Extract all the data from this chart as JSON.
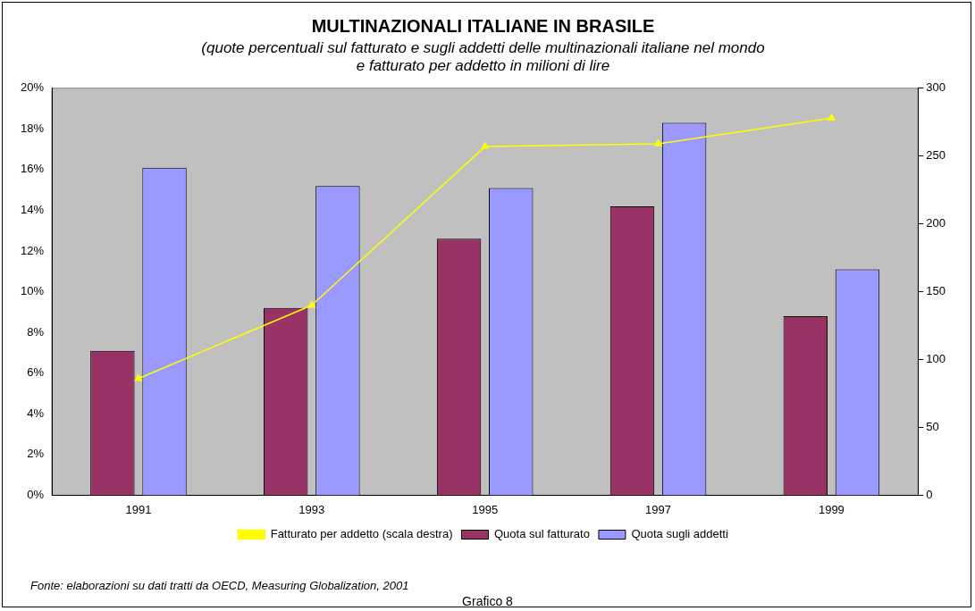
{
  "chart_data": {
    "type": "bar",
    "title": "MULTINAZIONALI ITALIANE IN BRASILE",
    "subtitle": "(quote percentuali sul fatturato e sugli addetti delle multinazionali italiane nel mondo\ne fatturato per addetto in milioni di lire",
    "categories": [
      "1991",
      "1993",
      "1995",
      "1997",
      "1999"
    ],
    "series": [
      {
        "name": "Quota sul fatturato",
        "color": "#993366",
        "values": [
          7.1,
          9.2,
          12.6,
          14.2,
          8.8
        ]
      },
      {
        "name": "Quota sugli addetti",
        "color": "#9999ff",
        "values": [
          16.1,
          15.2,
          15.1,
          18.3,
          11.1
        ]
      },
      {
        "name": "Fatturato per addetto (scala destra)",
        "type": "line",
        "axis": "y2",
        "color": "#ffff00",
        "marker": "triangle",
        "values": [
          86,
          140,
          257,
          259,
          278
        ]
      }
    ],
    "ylim": [
      0,
      20
    ],
    "yticks": [
      {
        "value": 0,
        "label": "0%"
      },
      {
        "value": 2,
        "label": "2%"
      },
      {
        "value": 4,
        "label": "4%"
      },
      {
        "value": 6,
        "label": "6%"
      },
      {
        "value": 8,
        "label": "8%"
      },
      {
        "value": 10,
        "label": "10%"
      },
      {
        "value": 12,
        "label": "12%"
      },
      {
        "value": 14,
        "label": "14%"
      },
      {
        "value": 16,
        "label": "16%"
      },
      {
        "value": 18,
        "label": "18%"
      },
      {
        "value": 20,
        "label": "20%"
      }
    ],
    "y2lim": [
      0,
      300
    ],
    "y2ticks": [
      0,
      50,
      100,
      150,
      200,
      250,
      300
    ],
    "grid": false,
    "legend": "bottom",
    "annotations": [
      "Fonte: elaborazioni su dati tratti da OECD, Measuring Globalization, 2001",
      "Grafico 8"
    ]
  }
}
